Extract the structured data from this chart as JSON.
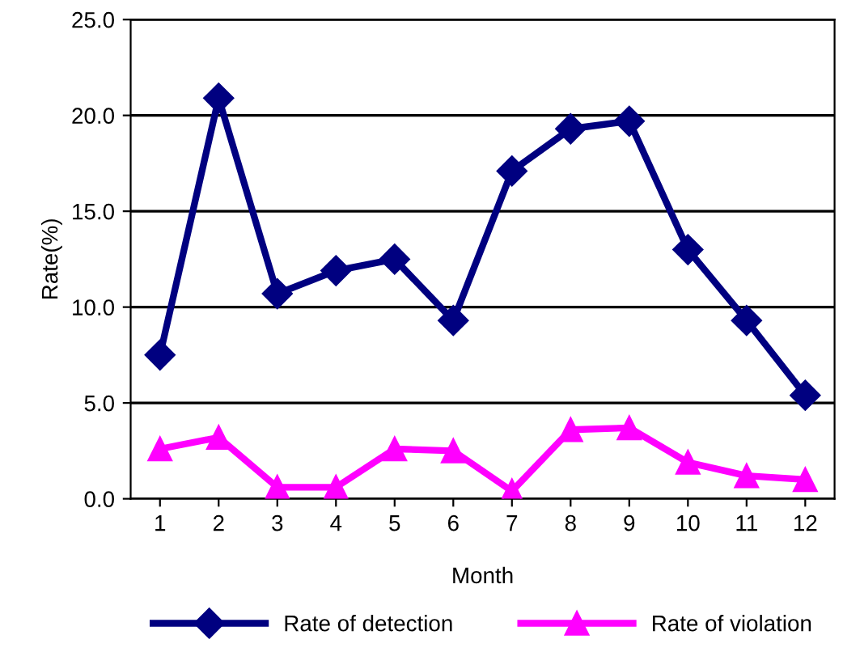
{
  "chart_data": {
    "type": "line",
    "xlabel": "Month",
    "ylabel": "Rate(%)",
    "categories": [
      "1",
      "2",
      "3",
      "4",
      "5",
      "6",
      "7",
      "8",
      "9",
      "10",
      "11",
      "12"
    ],
    "series": [
      {
        "name": "Rate of detection",
        "color": "#000080",
        "marker": "diamond",
        "values": [
          7.5,
          20.9,
          10.7,
          11.9,
          12.5,
          9.3,
          17.1,
          19.3,
          19.7,
          13.0,
          9.3,
          5.4
        ]
      },
      {
        "name": "Rate of violation",
        "color": "#ff00ff",
        "marker": "triangle",
        "values": [
          2.6,
          3.2,
          0.6,
          0.6,
          2.6,
          2.5,
          0.4,
          3.6,
          3.7,
          1.9,
          1.2,
          1.0
        ]
      }
    ],
    "ylim": [
      0,
      25
    ],
    "yticks": [
      {
        "value": 0,
        "label": "0.0"
      },
      {
        "value": 5,
        "label": "5.0"
      },
      {
        "value": 10,
        "label": "10.0"
      },
      {
        "value": 15,
        "label": "15.0"
      },
      {
        "value": 20,
        "label": "20.0"
      },
      {
        "value": 25,
        "label": "25.0"
      }
    ],
    "grid": "y",
    "legend": "bottom",
    "line_style": "solid"
  }
}
